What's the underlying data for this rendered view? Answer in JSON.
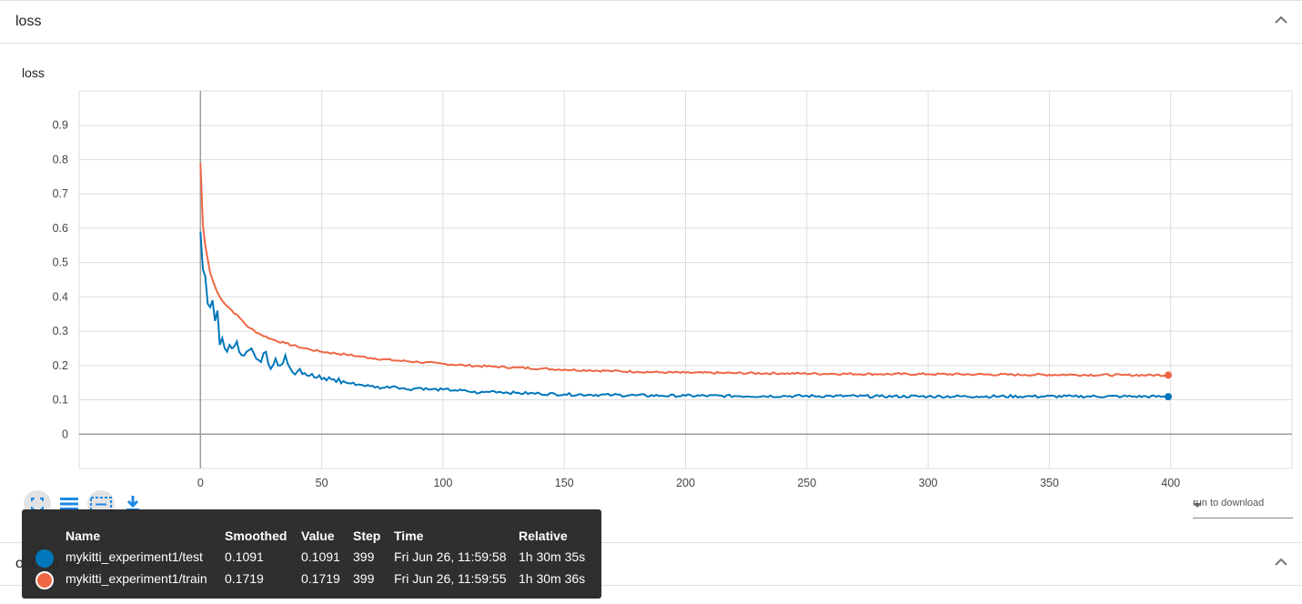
{
  "sections": [
    {
      "title": "loss"
    },
    {
      "title": "overall_accuracy"
    }
  ],
  "card": {
    "title": "loss"
  },
  "colors": {
    "test": "#0077bb",
    "train": "#ee6644",
    "grid": "#dddddd",
    "axis": "#9e9e9e"
  },
  "toolbar": {
    "icons": [
      "fullscreen-icon",
      "data-table-icon",
      "fit-domain-icon",
      "download-icon"
    ]
  },
  "run_select": {
    "label": "run to download"
  },
  "tooltip": {
    "headers": {
      "name": "Name",
      "smoothed": "Smoothed",
      "value": "Value",
      "step": "Step",
      "time": "Time",
      "relative": "Relative"
    },
    "rows": [
      {
        "name": "mykitti_experiment1/test",
        "smoothed": "0.1091",
        "value": "0.1091",
        "step": "399",
        "time": "Fri Jun 26, 11:59:58",
        "relative": "1h 30m 35s",
        "color": "#0077bb"
      },
      {
        "name": "mykitti_experiment1/train",
        "smoothed": "0.1719",
        "value": "0.1719",
        "step": "399",
        "time": "Fri Jun 26, 11:59:55",
        "relative": "1h 30m 36s",
        "color": "#ee6644"
      }
    ]
  },
  "chart_data": {
    "type": "line",
    "title": "loss",
    "xlabel": "",
    "ylabel": "",
    "xlim": [
      -50,
      450
    ],
    "ylim": [
      -0.1,
      1.0
    ],
    "xticks": [
      0,
      50,
      100,
      150,
      200,
      250,
      300,
      350,
      400
    ],
    "yticks": [
      0,
      0.1,
      0.2,
      0.3,
      0.4,
      0.5,
      0.6,
      0.7,
      0.8,
      0.9
    ],
    "xtick_labels": [
      "0",
      "50",
      "100",
      "150",
      "200",
      "250",
      "300",
      "350",
      "400"
    ],
    "ytick_labels": [
      "0",
      "0.1",
      "0.2",
      "0.3",
      "0.4",
      "0.5",
      "0.6",
      "0.7",
      "0.8",
      "0.9"
    ],
    "series": [
      {
        "name": "mykitti_experiment1/train",
        "color": "#ee6644",
        "x": [
          0,
          1,
          2,
          4,
          6,
          8,
          10,
          13,
          16,
          20,
          25,
          30,
          35,
          40,
          45,
          50,
          60,
          70,
          80,
          90,
          100,
          110,
          120,
          130,
          140,
          150,
          160,
          170,
          180,
          190,
          200,
          220,
          240,
          260,
          280,
          300,
          320,
          340,
          360,
          380,
          399
        ],
        "y": [
          0.79,
          0.61,
          0.55,
          0.47,
          0.43,
          0.4,
          0.38,
          0.36,
          0.34,
          0.31,
          0.29,
          0.275,
          0.265,
          0.255,
          0.247,
          0.24,
          0.232,
          0.222,
          0.215,
          0.21,
          0.205,
          0.2,
          0.197,
          0.194,
          0.191,
          0.188,
          0.186,
          0.184,
          0.182,
          0.18,
          0.179,
          0.178,
          0.177,
          0.176,
          0.175,
          0.175,
          0.174,
          0.173,
          0.173,
          0.172,
          0.1719
        ]
      },
      {
        "name": "mykitti_experiment1/test",
        "color": "#0077bb",
        "x": [
          0,
          1,
          2,
          3,
          4,
          5,
          6,
          7,
          8,
          9,
          10,
          11,
          12,
          13,
          15,
          17,
          19,
          21,
          23,
          25,
          27,
          29,
          31,
          33,
          35,
          38,
          41,
          45,
          50,
          55,
          60,
          65,
          70,
          75,
          80,
          85,
          90,
          95,
          100,
          105,
          110,
          115,
          120,
          130,
          140,
          150,
          160,
          170,
          180,
          190,
          200,
          220,
          240,
          260,
          280,
          300,
          320,
          340,
          360,
          380,
          399
        ],
        "y": [
          0.59,
          0.48,
          0.46,
          0.38,
          0.37,
          0.39,
          0.33,
          0.36,
          0.26,
          0.28,
          0.25,
          0.24,
          0.26,
          0.25,
          0.27,
          0.23,
          0.24,
          0.25,
          0.22,
          0.21,
          0.24,
          0.19,
          0.22,
          0.2,
          0.23,
          0.18,
          0.19,
          0.17,
          0.16,
          0.16,
          0.15,
          0.145,
          0.14,
          0.135,
          0.14,
          0.13,
          0.135,
          0.13,
          0.13,
          0.128,
          0.125,
          0.12,
          0.125,
          0.12,
          0.118,
          0.116,
          0.115,
          0.114,
          0.113,
          0.112,
          0.112,
          0.111,
          0.111,
          0.111,
          0.11,
          0.11,
          0.11,
          0.11,
          0.11,
          0.11,
          0.1091
        ]
      }
    ]
  }
}
